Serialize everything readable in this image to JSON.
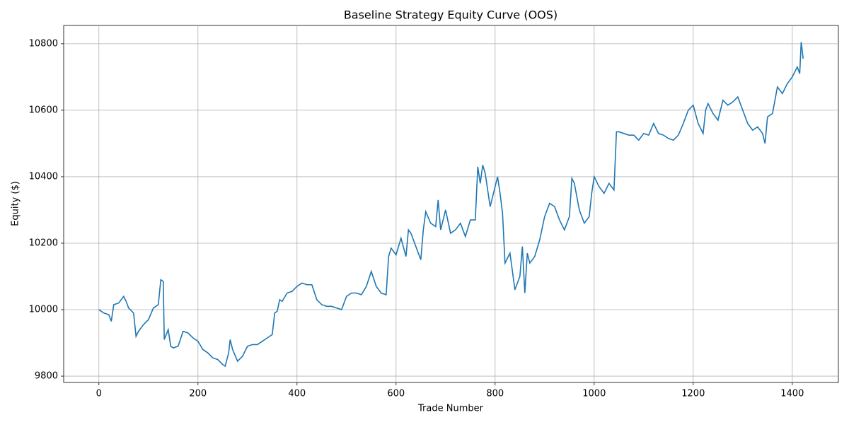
{
  "chart_data": {
    "type": "line",
    "title": "Baseline Strategy Equity Curve (OOS)",
    "x_label": "Trade Number",
    "y_label": "Equity ($)",
    "xlim": [
      -71.1,
      1493.1
    ],
    "ylim": [
      9781,
      10855
    ],
    "xticks": [
      0,
      200,
      400,
      600,
      800,
      1000,
      1200,
      1400
    ],
    "yticks": [
      9800,
      10000,
      10200,
      10400,
      10600,
      10800
    ],
    "grid": true,
    "series": [
      {
        "color": "#1f77b4",
        "x": [
          0,
          10,
          20,
          25,
          30,
          40,
          50,
          55,
          60,
          70,
          75,
          80,
          90,
          100,
          110,
          120,
          125,
          130,
          132,
          140,
          145,
          150,
          160,
          170,
          180,
          190,
          200,
          210,
          220,
          230,
          240,
          250,
          255,
          262,
          265,
          270,
          280,
          290,
          300,
          310,
          320,
          330,
          340,
          350,
          355,
          360,
          365,
          370,
          380,
          390,
          400,
          410,
          420,
          430,
          440,
          450,
          460,
          470,
          480,
          490,
          500,
          510,
          520,
          530,
          540,
          550,
          560,
          570,
          580,
          585,
          590,
          600,
          610,
          620,
          625,
          630,
          640,
          650,
          655,
          660,
          670,
          680,
          685,
          690,
          700,
          710,
          720,
          730,
          740,
          750,
          760,
          765,
          770,
          775,
          780,
          790,
          800,
          805,
          810,
          815,
          820,
          830,
          840,
          850,
          855,
          860,
          865,
          870,
          880,
          890,
          900,
          910,
          920,
          930,
          940,
          950,
          955,
          960,
          970,
          980,
          990,
          995,
          1000,
          1010,
          1020,
          1030,
          1040,
          1045,
          1050,
          1060,
          1070,
          1080,
          1090,
          1100,
          1110,
          1120,
          1130,
          1140,
          1150,
          1160,
          1170,
          1180,
          1190,
          1200,
          1210,
          1220,
          1225,
          1230,
          1240,
          1250,
          1260,
          1270,
          1280,
          1290,
          1300,
          1310,
          1320,
          1330,
          1340,
          1345,
          1350,
          1360,
          1370,
          1380,
          1390,
          1400,
          1410,
          1415,
          1418,
          1422
        ],
        "values": [
          10000,
          9990,
          9985,
          9965,
          10015,
          10020,
          10040,
          10025,
          10005,
          9990,
          9920,
          9935,
          9955,
          9970,
          10005,
          10015,
          10090,
          10085,
          9910,
          9940,
          9890,
          9885,
          9890,
          9935,
          9930,
          9915,
          9905,
          9880,
          9870,
          9855,
          9850,
          9835,
          9830,
          9870,
          9910,
          9880,
          9845,
          9860,
          9890,
          9895,
          9895,
          9905,
          9915,
          9925,
          9990,
          9995,
          10030,
          10025,
          10050,
          10055,
          10070,
          10080,
          10075,
          10075,
          10030,
          10015,
          10010,
          10010,
          10005,
          10000,
          10040,
          10050,
          10050,
          10045,
          10070,
          10115,
          10070,
          10050,
          10045,
          10160,
          10185,
          10165,
          10215,
          10160,
          10240,
          10230,
          10190,
          10150,
          10240,
          10295,
          10260,
          10250,
          10330,
          10240,
          10300,
          10230,
          10240,
          10260,
          10220,
          10270,
          10270,
          10430,
          10380,
          10435,
          10410,
          10310,
          10370,
          10400,
          10350,
          10290,
          10140,
          10170,
          10060,
          10100,
          10190,
          10050,
          10170,
          10140,
          10160,
          10210,
          10280,
          10320,
          10310,
          10270,
          10240,
          10280,
          10395,
          10380,
          10300,
          10260,
          10280,
          10350,
          10400,
          10370,
          10350,
          10380,
          10360,
          10535,
          10535,
          10530,
          10525,
          10525,
          10510,
          10530,
          10525,
          10560,
          10530,
          10525,
          10515,
          10510,
          10525,
          10560,
          10600,
          10615,
          10560,
          10530,
          10600,
          10620,
          10590,
          10570,
          10630,
          10615,
          10625,
          10640,
          10600,
          10560,
          10540,
          10550,
          10530,
          10500,
          10580,
          10590,
          10670,
          10650,
          10680,
          10700,
          10730,
          10710,
          10805,
          10755
        ]
      }
    ]
  }
}
